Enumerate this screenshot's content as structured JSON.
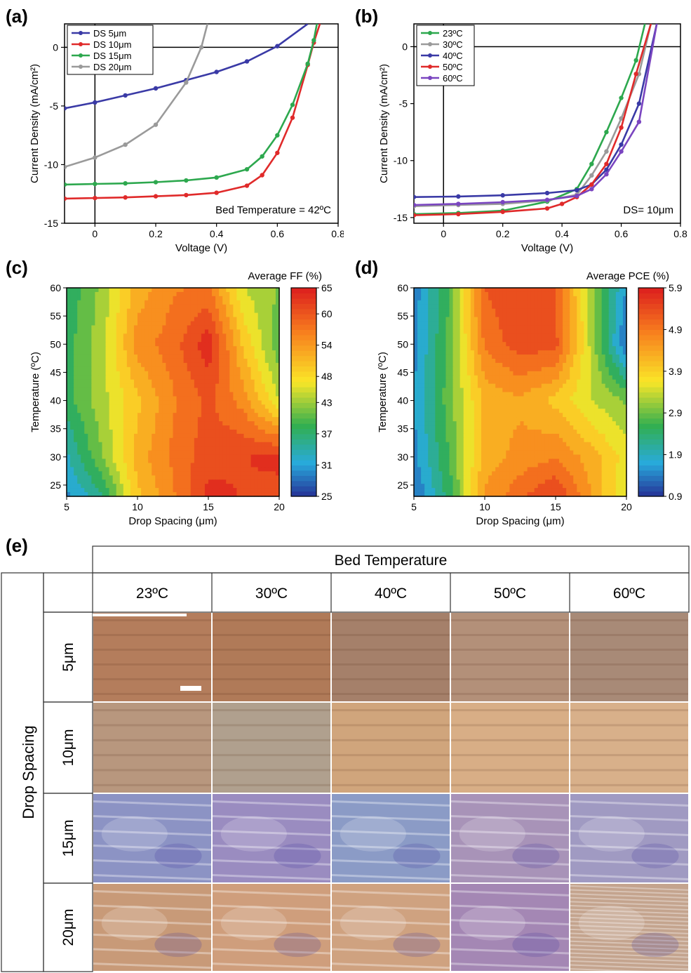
{
  "panel_labels": [
    "(a)",
    "(b)",
    "(c)",
    "(d)",
    "(e)"
  ],
  "chart_data": [
    {
      "id": "a",
      "type": "line",
      "xlabel": "Voltage (V)",
      "ylabel": "Current Density (mA/cm²)",
      "xlim": [
        -0.1,
        0.8
      ],
      "ylim": [
        -15,
        2
      ],
      "xticks": [
        0,
        0.2,
        0.4,
        0.6,
        0.8
      ],
      "yticks": [
        -15,
        -10,
        -5,
        0
      ],
      "annotation": "Bed Temperature = 42ºC",
      "legend_position": "top-left",
      "series": [
        {
          "name": "DS 5μm",
          "color": "#3a3aa6",
          "x": [
            -0.1,
            0,
            0.1,
            0.2,
            0.3,
            0.4,
            0.5,
            0.6,
            0.7
          ],
          "y": [
            -5.2,
            -4.7,
            -4.1,
            -3.5,
            -2.8,
            -2.1,
            -1.2,
            0.1,
            2.0
          ]
        },
        {
          "name": "DS 10μm",
          "color": "#e02a2a",
          "x": [
            -0.1,
            0,
            0.1,
            0.2,
            0.3,
            0.4,
            0.5,
            0.55,
            0.6,
            0.65,
            0.7,
            0.72,
            0.74
          ],
          "y": [
            -12.9,
            -12.85,
            -12.8,
            -12.7,
            -12.6,
            -12.4,
            -11.8,
            -10.9,
            -9.0,
            -6.0,
            -1.5,
            0.4,
            2.0
          ]
        },
        {
          "name": "DS 15μm",
          "color": "#2da84e",
          "x": [
            -0.1,
            0,
            0.1,
            0.2,
            0.3,
            0.4,
            0.5,
            0.55,
            0.6,
            0.65,
            0.7,
            0.72,
            0.73
          ],
          "y": [
            -11.7,
            -11.65,
            -11.6,
            -11.5,
            -11.35,
            -11.1,
            -10.4,
            -9.3,
            -7.5,
            -4.9,
            -1.4,
            0.6,
            2.0
          ]
        },
        {
          "name": "DS 20μm",
          "color": "#9a9a9a",
          "x": [
            -0.1,
            0,
            0.1,
            0.2,
            0.3,
            0.35,
            0.37
          ],
          "y": [
            -10.2,
            -9.4,
            -8.3,
            -6.6,
            -3.0,
            0.0,
            2.0
          ]
        }
      ]
    },
    {
      "id": "b",
      "type": "line",
      "xlabel": "Voltage (V)",
      "ylabel": "Current Density (mA/cm²)",
      "xlim": [
        -0.1,
        0.8
      ],
      "ylim": [
        -15.5,
        2
      ],
      "xticks": [
        0,
        0.2,
        0.4,
        0.6,
        0.8
      ],
      "yticks": [
        -15,
        -10,
        -5,
        0
      ],
      "annotation": "DS= 10μm",
      "legend_position": "top-left",
      "series": [
        {
          "name": "23ºC",
          "color": "#2da84e",
          "x": [
            -0.1,
            0.05,
            0.2,
            0.35,
            0.45,
            0.5,
            0.55,
            0.6,
            0.65,
            0.68
          ],
          "y": [
            -14.7,
            -14.6,
            -14.4,
            -13.6,
            -12.5,
            -10.3,
            -7.5,
            -4.5,
            -1.2,
            2.0
          ]
        },
        {
          "name": "30ºC",
          "color": "#9a9a9a",
          "x": [
            -0.1,
            0.05,
            0.2,
            0.35,
            0.45,
            0.5,
            0.55,
            0.6,
            0.66,
            0.7
          ],
          "y": [
            -14.0,
            -13.9,
            -13.8,
            -13.5,
            -13.0,
            -11.3,
            -9.2,
            -6.3,
            -2.4,
            2.0
          ]
        },
        {
          "name": "40ºC",
          "color": "#3a3aa6",
          "x": [
            -0.1,
            0.05,
            0.2,
            0.35,
            0.45,
            0.5,
            0.55,
            0.6,
            0.66,
            0.72
          ],
          "y": [
            -13.2,
            -13.15,
            -13.05,
            -12.85,
            -12.6,
            -12.1,
            -10.8,
            -8.6,
            -5.0,
            2.0
          ]
        },
        {
          "name": "50ºC",
          "color": "#e02a2a",
          "x": [
            -0.1,
            0.05,
            0.2,
            0.35,
            0.4,
            0.45,
            0.5,
            0.55,
            0.6,
            0.65,
            0.7
          ],
          "y": [
            -14.8,
            -14.7,
            -14.5,
            -14.2,
            -13.8,
            -13.2,
            -12.1,
            -10.3,
            -7.1,
            -2.4,
            2.0
          ]
        },
        {
          "name": "60ºC",
          "color": "#7a45c0",
          "x": [
            -0.1,
            0.05,
            0.2,
            0.35,
            0.45,
            0.5,
            0.55,
            0.6,
            0.66,
            0.72
          ],
          "y": [
            -13.9,
            -13.8,
            -13.65,
            -13.45,
            -13.1,
            -12.5,
            -11.2,
            -9.2,
            -6.6,
            2.0
          ]
        }
      ]
    },
    {
      "id": "c",
      "type": "heatmap",
      "title": "Average FF (%)",
      "xlabel": "Drop Spacing (μm)",
      "ylabel": "Temperature (ºC)",
      "xlim": [
        5,
        20
      ],
      "ylim": [
        23,
        60
      ],
      "xticks": [
        5,
        10,
        15,
        20
      ],
      "yticks": [
        25,
        30,
        35,
        40,
        45,
        50,
        55,
        60
      ],
      "colorbar_ticks": [
        25,
        31,
        37,
        43,
        48,
        54,
        60,
        65
      ],
      "colorbar_range": [
        25,
        65
      ],
      "x": [
        5,
        7.5,
        10,
        12.5,
        15,
        17.5,
        20
      ],
      "y": [
        23,
        30,
        40,
        50,
        60
      ],
      "z": [
        [
          30,
          36,
          50,
          56,
          63,
          62,
          61
        ],
        [
          33,
          42,
          52,
          57,
          61,
          62,
          63
        ],
        [
          38,
          44,
          50,
          56,
          60,
          55,
          45
        ],
        [
          38,
          44,
          55,
          58,
          64,
          50,
          40
        ],
        [
          37,
          43,
          52,
          56,
          57,
          45,
          42
        ]
      ]
    },
    {
      "id": "d",
      "type": "heatmap",
      "title": "Average PCE (%)",
      "xlabel": "Drop Spacing (μm)",
      "ylabel": "Temperature (ºC)",
      "xlim": [
        5,
        20
      ],
      "ylim": [
        23,
        60
      ],
      "xticks": [
        5,
        10,
        15,
        20
      ],
      "yticks": [
        25,
        30,
        35,
        40,
        45,
        50,
        55,
        60
      ],
      "colorbar_ticks": [
        0.9,
        1.9,
        2.9,
        3.9,
        4.9,
        5.9
      ],
      "colorbar_range": [
        0.9,
        5.9
      ],
      "x": [
        5,
        7.5,
        10,
        12.5,
        15,
        17.5,
        20
      ],
      "y": [
        23,
        30,
        40,
        50,
        60
      ],
      "z": [
        [
          1.2,
          2.5,
          4.5,
          5.1,
          5.6,
          4.5,
          3.4
        ],
        [
          1.5,
          2.7,
          4.3,
          4.6,
          4.8,
          4.3,
          3.6
        ],
        [
          1.6,
          2.9,
          4.2,
          4.4,
          4.0,
          3.4,
          3.0
        ],
        [
          1.5,
          2.8,
          4.9,
          5.4,
          5.3,
          3.3,
          1.2
        ],
        [
          1.4,
          2.7,
          5.2,
          5.5,
          5.2,
          3.2,
          1.6
        ]
      ]
    }
  ],
  "micrograph_grid": {
    "column_header": "Bed Temperature",
    "row_header": "Drop Spacing",
    "columns": [
      "23ºC",
      "30ºC",
      "40ºC",
      "50ºC",
      "60ºC"
    ],
    "rows": [
      "5μm",
      "10μm",
      "15μm",
      "20μm"
    ],
    "cell_colors": [
      [
        "#b47d5c",
        "#b07a58",
        "#a5806a",
        "#b39079",
        "#a88a77"
      ],
      [
        "#b8977e",
        "#b0a08e",
        "#d0a57c",
        "#d8ae86",
        "#d8b08a"
      ],
      [
        "#8c93c4",
        "#9a8cc0",
        "#8b9bc6",
        "#a893b8",
        "#a09ac2"
      ],
      [
        "#c89a78",
        "#cf9e7c",
        "#cfa280",
        "#a487b4",
        "#c4a48e"
      ]
    ]
  }
}
